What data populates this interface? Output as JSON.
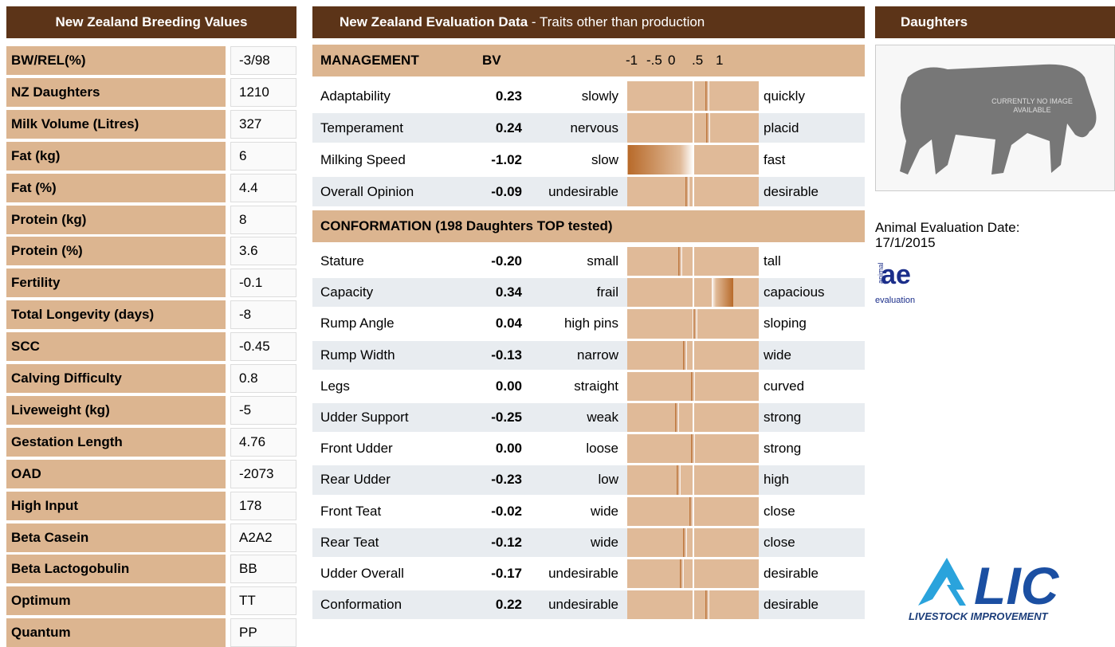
{
  "breeding_values": {
    "title": "New Zealand Breeding Values",
    "rows": [
      [
        "BW/REL(%)",
        "-3/98"
      ],
      [
        "NZ Daughters",
        "1210"
      ],
      [
        "Milk Volume (Litres)",
        "327"
      ],
      [
        "Fat (kg)",
        "6"
      ],
      [
        "Fat (%)",
        "4.4"
      ],
      [
        "Protein (kg)",
        "8"
      ],
      [
        "Protein (%)",
        "3.6"
      ],
      [
        "Fertility",
        "-0.1"
      ],
      [
        "Total Longevity (days)",
        "-8"
      ],
      [
        "SCC",
        "-0.45"
      ],
      [
        "Calving Difficulty",
        "0.8"
      ],
      [
        "Liveweight (kg)",
        "-5"
      ],
      [
        "Gestation Length",
        "4.76"
      ],
      [
        "OAD",
        "-2073"
      ],
      [
        "High Input",
        "178"
      ],
      [
        "Beta Casein",
        "A2A2"
      ],
      [
        "Beta Lactogobulin",
        "BB"
      ],
      [
        "Optimum",
        "TT"
      ],
      [
        "Quantum",
        "PP"
      ]
    ]
  },
  "evaluation": {
    "title": "New Zealand Evaluation Data",
    "subtitle": "- Traits other than production",
    "management": {
      "title": "MANAGEMENT",
      "bv_header": "BV",
      "scale": [
        "-1",
        "-.5",
        "0",
        ".5",
        "1"
      ],
      "rows": [
        [
          "Adaptability",
          "0.23",
          "slowly",
          "quickly"
        ],
        [
          "Temperament",
          "0.24",
          "nervous",
          "placid"
        ],
        [
          "Milking Speed",
          "-1.02",
          "slow",
          "fast"
        ],
        [
          "Overall Opinion",
          "-0.09",
          "undesirable",
          "desirable"
        ]
      ]
    },
    "conformation": {
      "title": "CONFORMATION (198 Daughters TOP tested)",
      "rows": [
        [
          "Stature",
          "-0.20",
          "small",
          "tall"
        ],
        [
          "Capacity",
          "0.34",
          "frail",
          "capacious"
        ],
        [
          "Rump Angle",
          "0.04",
          "high pins",
          "sloping"
        ],
        [
          "Rump Width",
          "-0.13",
          "narrow",
          "wide"
        ],
        [
          "Legs",
          "0.00",
          "straight",
          "curved"
        ],
        [
          "Udder Support",
          "-0.25",
          "weak",
          "strong"
        ],
        [
          "Front Udder",
          "0.00",
          "loose",
          "strong"
        ],
        [
          "Rear Udder",
          "-0.23",
          "low",
          "high"
        ],
        [
          "Front Teat",
          "-0.02",
          "wide",
          "close"
        ],
        [
          "Rear Teat",
          "-0.12",
          "wide",
          "close"
        ],
        [
          "Udder Overall",
          "-0.17",
          "undesirable",
          "desirable"
        ],
        [
          "Conformation",
          "0.22",
          "undesirable",
          "desirable"
        ]
      ]
    }
  },
  "daughters": {
    "title": "Daughters",
    "image_text": [
      "CURRENTLY NO IMAGE",
      "AVAILABLE"
    ],
    "date_label": "Animal Evaluation Date:",
    "date": "17/1/2015",
    "ae_logo": [
      "ae",
      "animal",
      "evaluation"
    ],
    "lic_logo": [
      "LIC",
      "LIVESTOCK IMPROVEMENT"
    ]
  }
}
